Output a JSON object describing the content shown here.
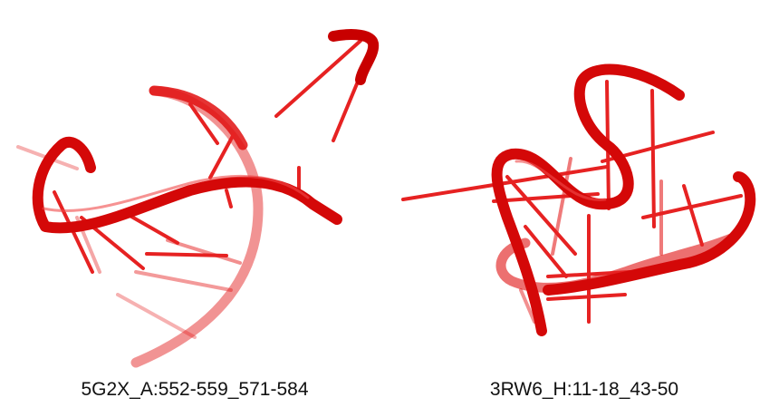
{
  "panels": [
    {
      "caption": "5G2X_A:552-559_571-584"
    },
    {
      "caption": "3RW6_H:11-18_43-50"
    }
  ],
  "colors": {
    "backbone": "#e01010",
    "backbone_dark": "#b00000",
    "base": "#e62222",
    "background": "#ffffff",
    "caption_text": "#111111"
  }
}
